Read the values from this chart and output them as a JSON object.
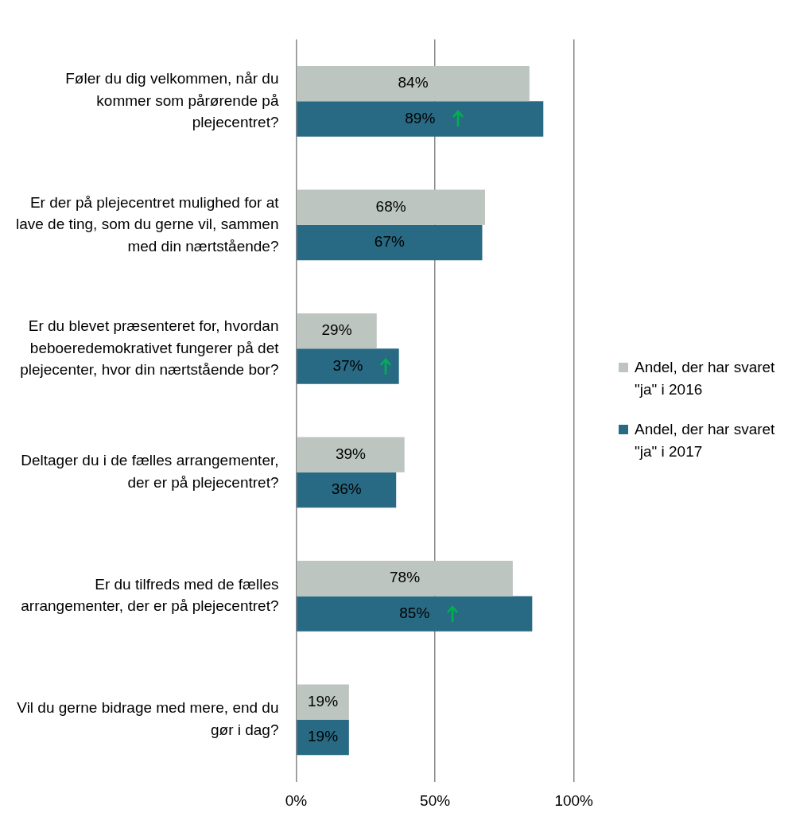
{
  "chart_data": {
    "type": "bar",
    "orientation": "horizontal",
    "categories": [
      "Føler du dig velkommen, når du kommer som pårørende på plejecentret?",
      "Er der på plejecentret mulighed for at lave de ting, som du gerne vil, sammen med din nærtstående?",
      "Er du blevet præsenteret for, hvordan beboeredemokrativet fungerer på det plejecenter, hvor din nærtstående bor?",
      "Deltager du i de fælles arrangementer, der er på plejecentret?",
      "Er du tilfreds med de fælles arrangementer, der er på plejecentret?",
      "Vil du gerne bidrage med mere, end du gør i dag?"
    ],
    "series": [
      {
        "name": "Andel, der har svaret \"ja\" i 2016",
        "color": "#bcc5c0",
        "values": [
          84,
          68,
          29,
          39,
          78,
          19
        ]
      },
      {
        "name": "Andel, der har svaret \"ja\" i 2017",
        "color": "#286a84",
        "values": [
          89,
          67,
          37,
          36,
          85,
          19
        ]
      }
    ],
    "xlim": [
      0,
      100
    ],
    "xticks": [
      {
        "value": 0,
        "label": "0%"
      },
      {
        "value": 50,
        "label": "50%"
      },
      {
        "value": 100,
        "label": "100%"
      }
    ],
    "value_labels": [
      [
        "84%",
        "68%",
        "29%",
        "39%",
        "78%",
        "19%"
      ],
      [
        "89%",
        "67%",
        "37%",
        "36%",
        "85%",
        "19%"
      ]
    ],
    "grid": "x",
    "legend": "right"
  }
}
